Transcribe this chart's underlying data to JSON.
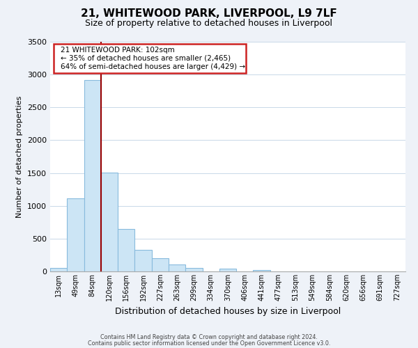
{
  "title": "21, WHITEWOOD PARK, LIVERPOOL, L9 7LF",
  "subtitle": "Size of property relative to detached houses in Liverpool",
  "xlabel": "Distribution of detached houses by size in Liverpool",
  "ylabel": "Number of detached properties",
  "bar_color": "#cce5f5",
  "bar_edge_color": "#88bbdd",
  "background_color": "#eef2f8",
  "plot_bg_color": "#ffffff",
  "grid_color": "#c8d8e8",
  "bin_labels": [
    "13sqm",
    "49sqm",
    "84sqm",
    "120sqm",
    "156sqm",
    "192sqm",
    "227sqm",
    "263sqm",
    "299sqm",
    "334sqm",
    "370sqm",
    "406sqm",
    "441sqm",
    "477sqm",
    "513sqm",
    "549sqm",
    "584sqm",
    "620sqm",
    "656sqm",
    "691sqm",
    "727sqm"
  ],
  "bar_values": [
    50,
    1110,
    2920,
    1510,
    650,
    330,
    200,
    110,
    55,
    0,
    40,
    0,
    20,
    0,
    0,
    0,
    0,
    0,
    0,
    0,
    0
  ],
  "ylim": [
    0,
    3500
  ],
  "yticks": [
    0,
    500,
    1000,
    1500,
    2000,
    2500,
    3000,
    3500
  ],
  "vline_bin_index": 2,
  "vline_color": "#990000",
  "annotation_box_edge_color": "#cc2222",
  "annotation_text_line1": "21 WHITEWOOD PARK: 102sqm",
  "annotation_text_line2": "← 35% of detached houses are smaller (2,465)",
  "annotation_text_line3": "64% of semi-detached houses are larger (4,429) →",
  "footer_line1": "Contains HM Land Registry data © Crown copyright and database right 2024.",
  "footer_line2": "Contains public sector information licensed under the Open Government Licence v3.0."
}
